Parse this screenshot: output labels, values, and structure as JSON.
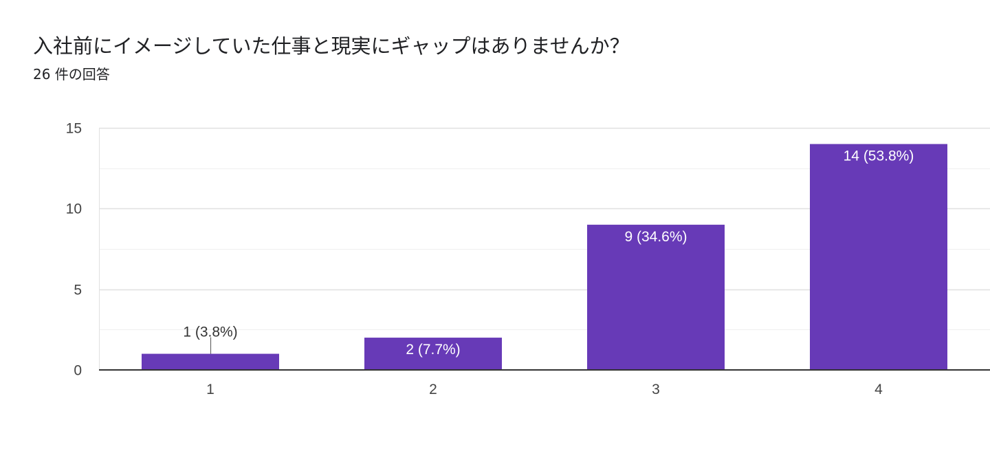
{
  "header": {
    "title": "入社前にイメージしていた仕事と現実にギャップはありませんか？",
    "response_count": "26 件の回答"
  },
  "colors": {
    "bar": "#673ab7",
    "grid": "#e0e0e0",
    "grid_minor": "#efefef",
    "axis": "#333333",
    "label_inside": "#ffffff",
    "label_outside": "#333333"
  },
  "chart_data": {
    "type": "bar",
    "title": "入社前にイメージしていた仕事と現実にギャップはありませんか？",
    "subtitle": "26 件の回答",
    "categories": [
      "1",
      "2",
      "3",
      "4"
    ],
    "values": [
      1,
      2,
      9,
      14
    ],
    "data_labels": [
      "1 (3.8%)",
      "2 (7.7%)",
      "9 (34.6%)",
      "14 (53.8%)"
    ],
    "ylim": [
      0,
      15
    ],
    "yticks": [
      0,
      5,
      10,
      15
    ],
    "xlabel": "",
    "ylabel": "",
    "grid": true,
    "legend": "none"
  }
}
